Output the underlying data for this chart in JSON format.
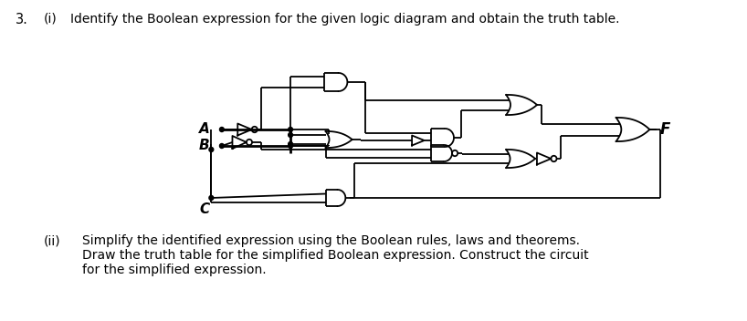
{
  "bg_color": "#ffffff",
  "line_color": "#000000",
  "text_3": "3.",
  "text_i_label": "(i)",
  "text_i": "Identify the Boolean expression for the given logic diagram and obtain the truth table.",
  "text_ii_label": "(ii)",
  "text_ii_line1": "Simplify the identified expression using the Boolean rules, laws and theorems.",
  "text_ii_line2": "Draw the truth table for the simplified Boolean expression. Construct the circuit",
  "text_ii_line3": "for the simplified expression.",
  "label_A": "A",
  "label_B": "B",
  "label_C": "C",
  "label_F": "F"
}
